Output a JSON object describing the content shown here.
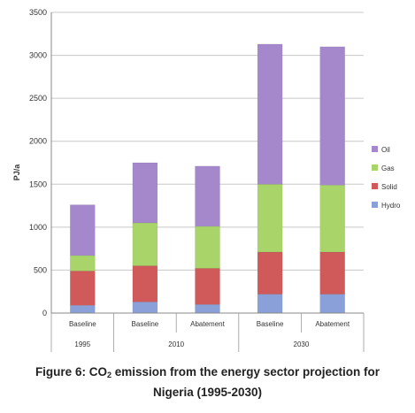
{
  "chart_data": {
    "type": "bar",
    "stacked": true,
    "ylabel": "PJ/a",
    "ylim": [
      0,
      3500
    ],
    "yticks": [
      0,
      500,
      1000,
      1500,
      2000,
      2500,
      3000,
      3500
    ],
    "grid": true,
    "legend_position": "right",
    "categories": [
      "Baseline",
      "Baseline",
      "Abatement",
      "Baseline",
      "Abatement"
    ],
    "groups": [
      {
        "label": "1995",
        "span": 1
      },
      {
        "label": "2010",
        "span": 2
      },
      {
        "label": "2030",
        "span": 2
      }
    ],
    "series": [
      {
        "name": "Hydro",
        "color": "#8aa0d8",
        "values": [
          90,
          130,
          100,
          220,
          220
        ]
      },
      {
        "name": "Solid",
        "color": "#d05a5a",
        "values": [
          400,
          420,
          420,
          490,
          490
        ]
      },
      {
        "name": "Gas",
        "color": "#a8d46a",
        "values": [
          180,
          500,
          490,
          790,
          780
        ]
      },
      {
        "name": "Oil",
        "color": "#a587cc",
        "values": [
          590,
          700,
          700,
          1630,
          1610
        ]
      }
    ]
  },
  "caption": {
    "prefix": "Figure 6: CO",
    "subscript": "2",
    "suffix": " emission from the energy sector projection for",
    "line2": "Nigeria (1995-2030)"
  }
}
